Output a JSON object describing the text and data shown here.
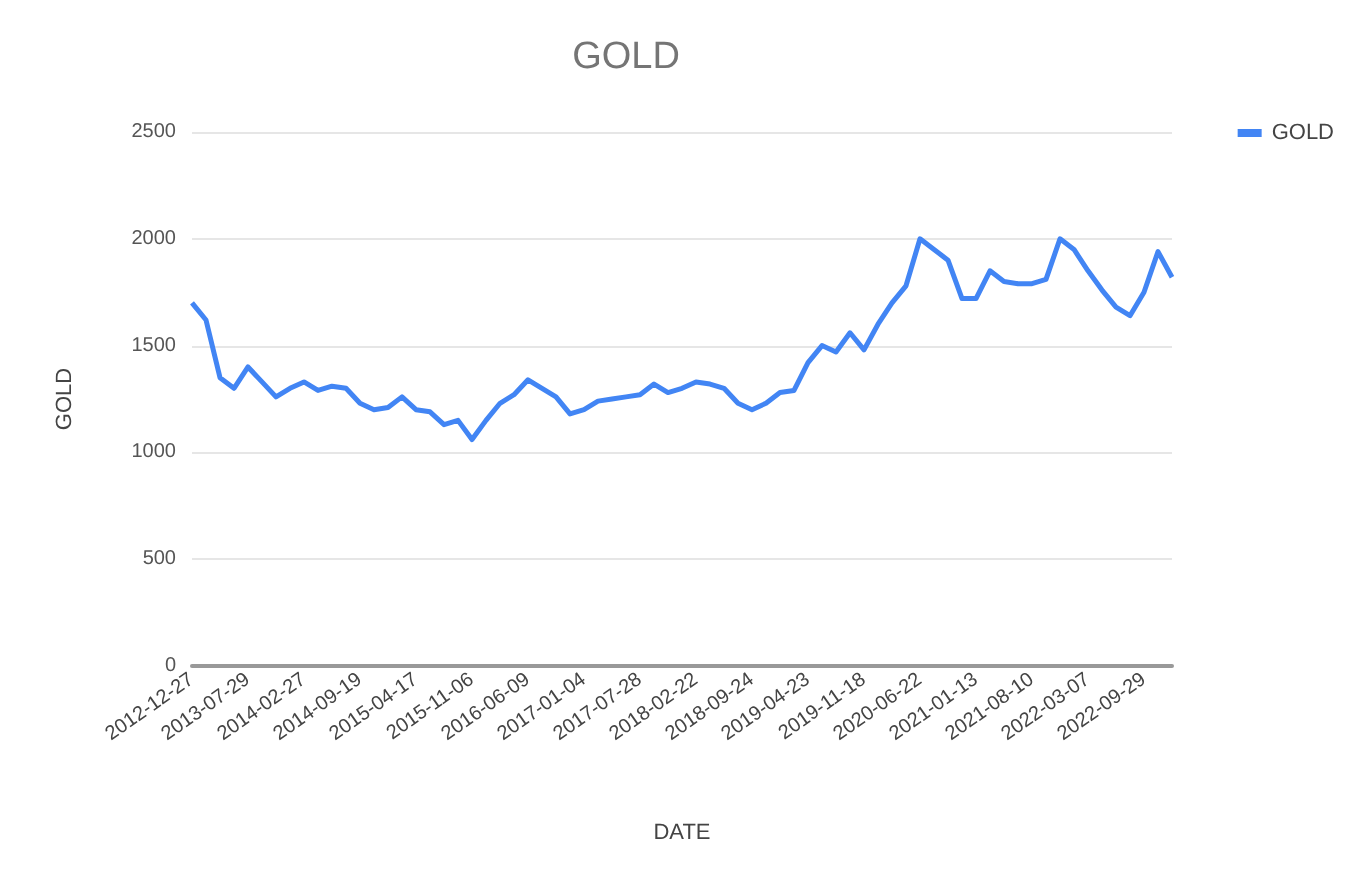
{
  "chart_data": {
    "type": "line",
    "title": "GOLD",
    "xlabel": "DATE",
    "ylabel": "GOLD",
    "categories": [
      "2012-12-27",
      null,
      null,
      null,
      "2013-07-29",
      null,
      null,
      null,
      "2014-02-27",
      null,
      null,
      null,
      "2014-09-19",
      null,
      null,
      null,
      "2015-04-17",
      null,
      null,
      null,
      "2015-11-06",
      null,
      null,
      null,
      "2016-06-09",
      null,
      null,
      null,
      "2017-01-04",
      null,
      null,
      null,
      "2017-07-28",
      null,
      null,
      null,
      "2018-02-22",
      null,
      null,
      null,
      "2018-09-24",
      null,
      null,
      null,
      "2019-04-23",
      null,
      null,
      null,
      "2019-11-18",
      null,
      null,
      null,
      "2020-06-22",
      null,
      null,
      null,
      "2021-01-13",
      null,
      null,
      null,
      "2021-08-10",
      null,
      null,
      null,
      "2022-03-07",
      null,
      null,
      null,
      "2022-09-29",
      null,
      null
    ],
    "series": [
      {
        "name": "GOLD",
        "color": "#4285f4",
        "values": [
          1700,
          1620,
          1350,
          1300,
          1400,
          1330,
          1260,
          1300,
          1330,
          1290,
          1310,
          1300,
          1230,
          1200,
          1210,
          1260,
          1200,
          1190,
          1130,
          1150,
          1060,
          1150,
          1230,
          1270,
          1340,
          1300,
          1260,
          1180,
          1200,
          1240,
          1250,
          1260,
          1270,
          1320,
          1280,
          1300,
          1330,
          1320,
          1300,
          1230,
          1200,
          1230,
          1280,
          1290,
          1420,
          1500,
          1470,
          1560,
          1480,
          1600,
          1700,
          1780,
          2000,
          1950,
          1900,
          1720,
          1720,
          1850,
          1800,
          1790,
          1790,
          1810,
          2000,
          1950,
          1850,
          1760,
          1680,
          1640,
          1750,
          1940,
          1820
        ]
      }
    ],
    "ylim": [
      0,
      2500
    ],
    "yticks": [
      0,
      500,
      1000,
      1500,
      2000,
      2500
    ],
    "grid": "y",
    "legend": "top right",
    "marker": "none",
    "line_style": "solid"
  }
}
